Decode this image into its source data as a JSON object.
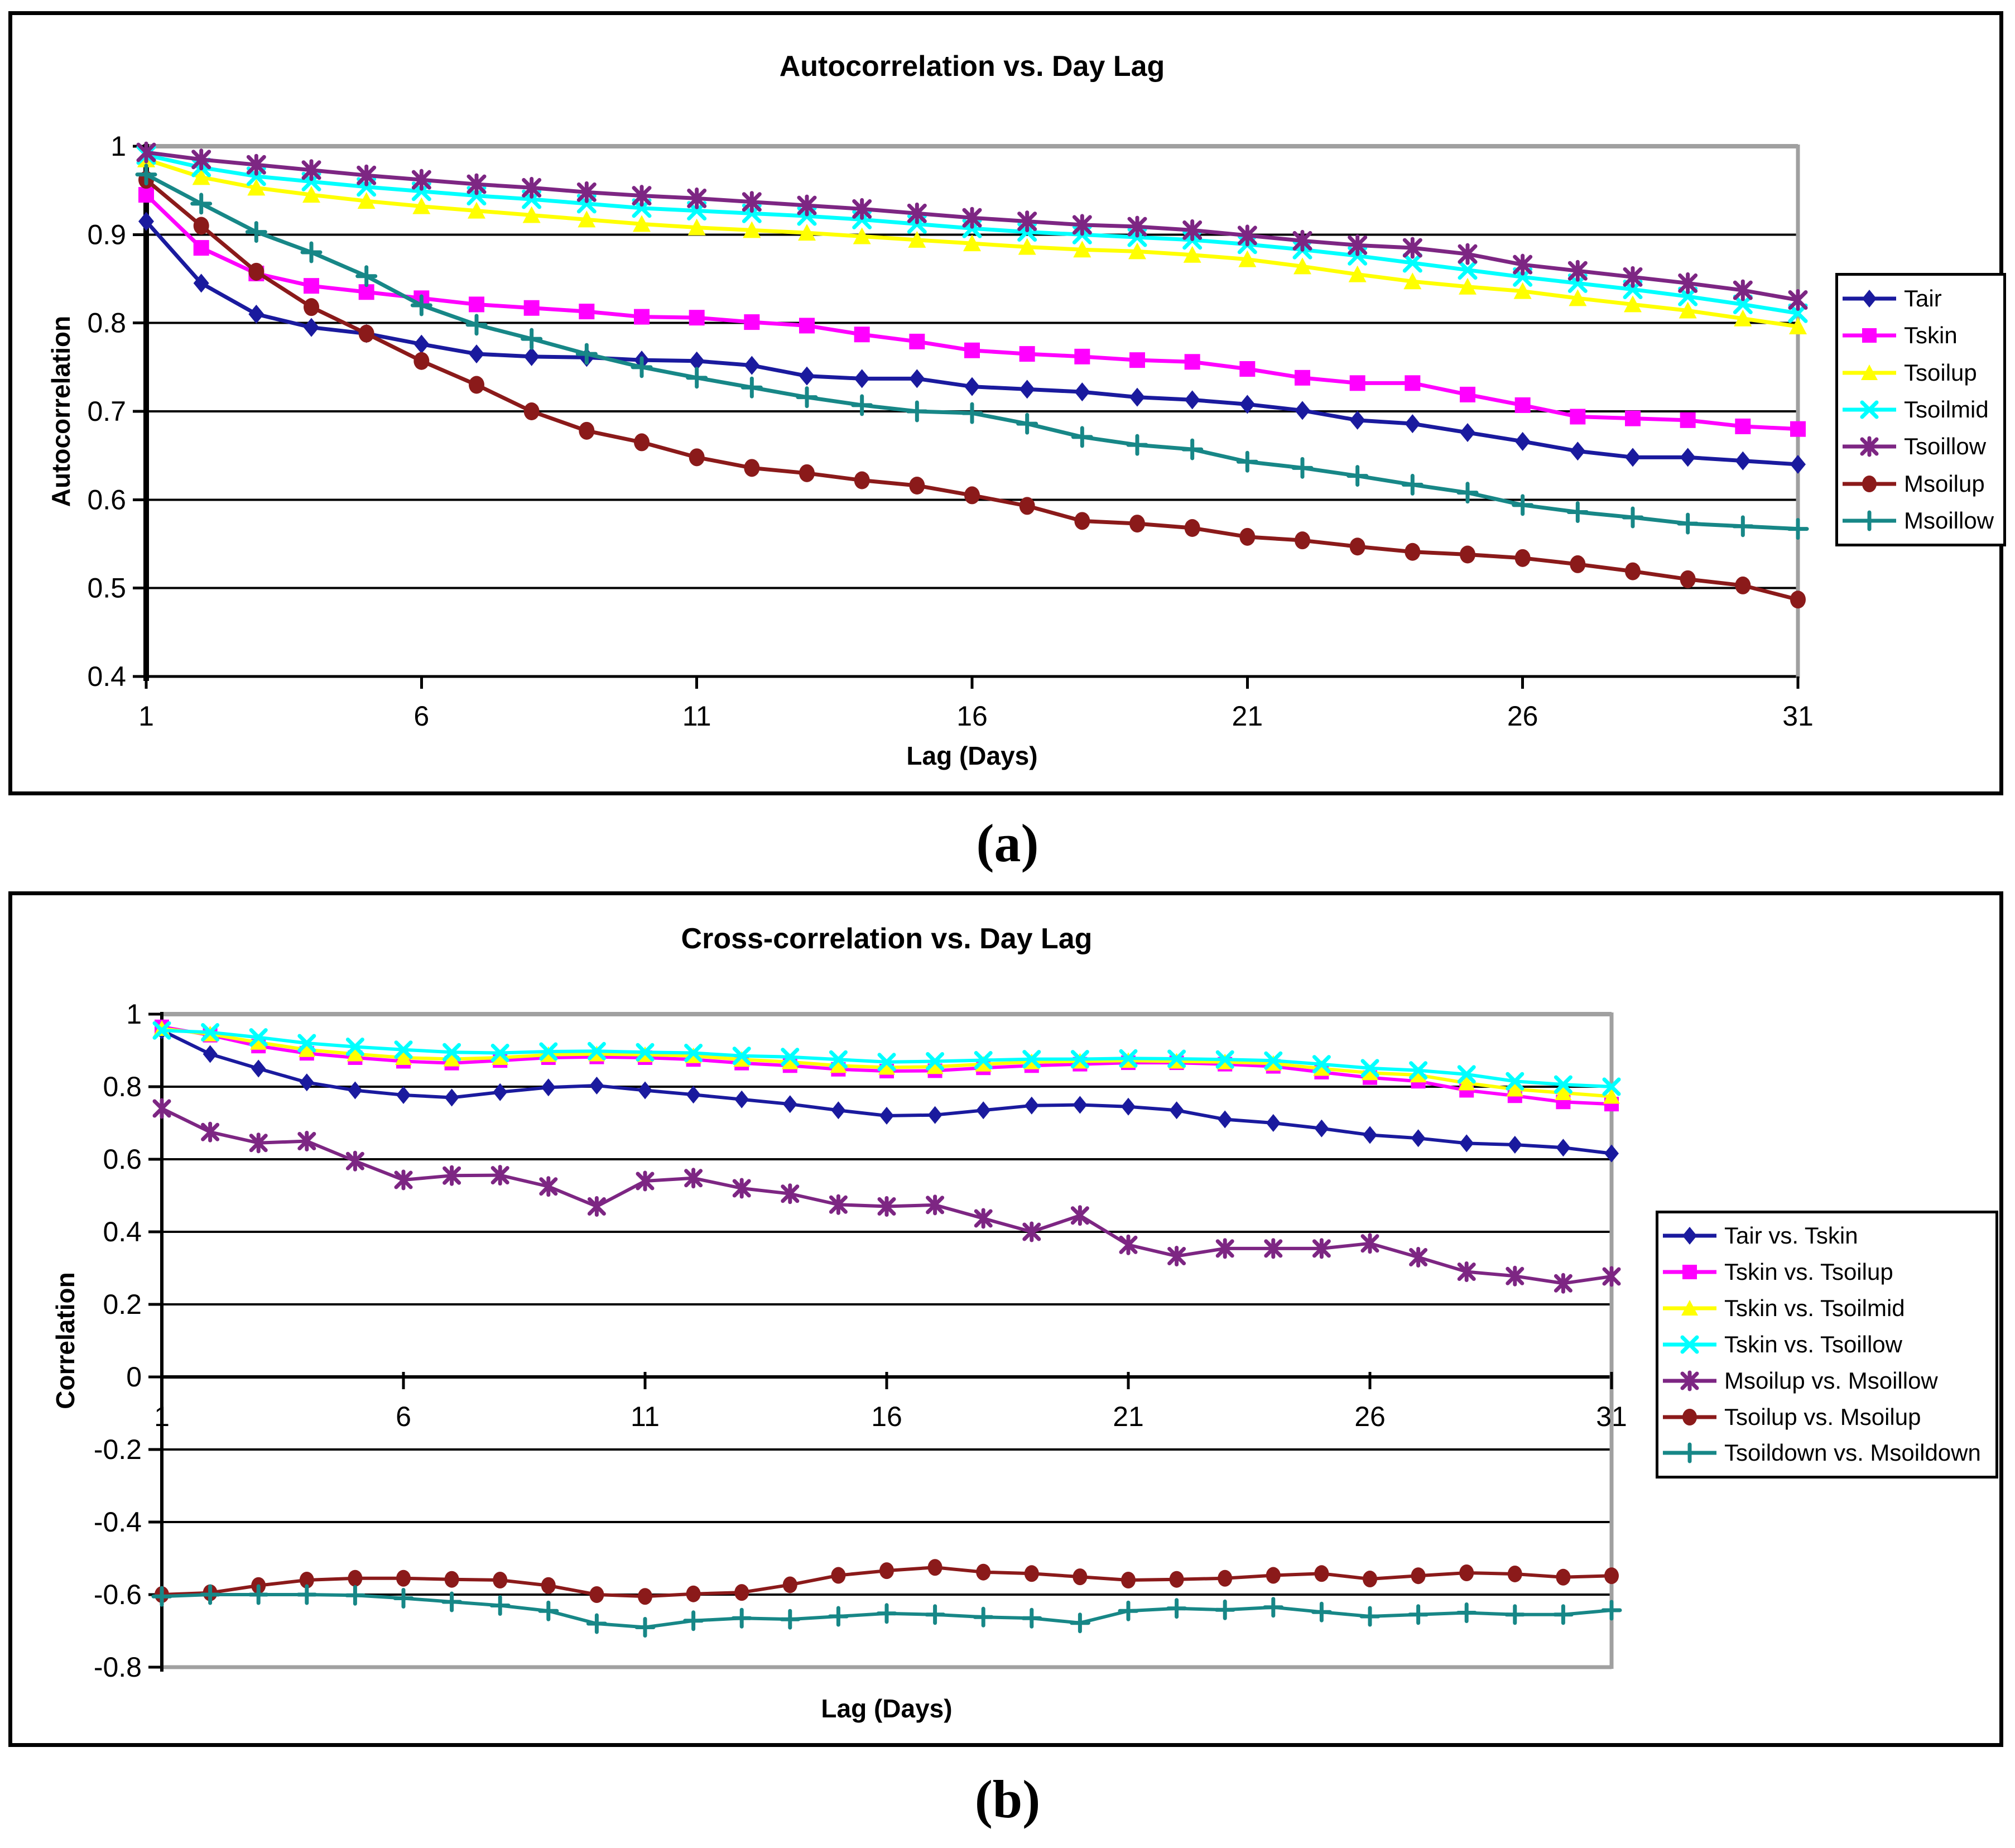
{
  "page": {
    "caption_a": "(a)",
    "caption_b": "(b)"
  },
  "chart_data": [
    {
      "type": "line",
      "title": "Autocorrelation vs. Day Lag",
      "xlabel": "Lag (Days)",
      "ylabel": "Autocorrelation",
      "xlim": [
        1,
        31
      ],
      "ylim": [
        0.4,
        1.0
      ],
      "x_ticks": [
        1,
        6,
        11,
        16,
        21,
        26,
        31
      ],
      "y_ticks": [
        1,
        0.9,
        0.8,
        0.7,
        0.6,
        0.5,
        0.4
      ],
      "grid": true,
      "legend_position": "right",
      "x": [
        1,
        2,
        3,
        4,
        5,
        6,
        7,
        8,
        9,
        10,
        11,
        12,
        13,
        14,
        15,
        16,
        17,
        18,
        19,
        20,
        21,
        22,
        23,
        24,
        25,
        26,
        27,
        28,
        29,
        30,
        31
      ],
      "series": [
        {
          "name": "Tair",
          "color": "#1a1a9e",
          "marker": "diamond",
          "values": [
            0.915,
            0.845,
            0.81,
            0.795,
            0.788,
            0.776,
            0.765,
            0.762,
            0.761,
            0.758,
            0.757,
            0.752,
            0.74,
            0.737,
            0.737,
            0.728,
            0.725,
            0.722,
            0.716,
            0.713,
            0.708,
            0.701,
            0.69,
            0.686,
            0.676,
            0.666,
            0.655,
            0.648,
            0.648,
            0.644,
            0.64
          ]
        },
        {
          "name": "Tskin",
          "color": "#ff00ff",
          "marker": "square",
          "values": [
            0.945,
            0.885,
            0.856,
            0.842,
            0.835,
            0.828,
            0.821,
            0.817,
            0.813,
            0.807,
            0.806,
            0.801,
            0.797,
            0.787,
            0.779,
            0.769,
            0.765,
            0.762,
            0.758,
            0.756,
            0.748,
            0.738,
            0.732,
            0.732,
            0.719,
            0.707,
            0.694,
            0.692,
            0.69,
            0.683,
            0.68
          ]
        },
        {
          "name": "Tsoilup",
          "color": "#ffff00",
          "marker": "triangle",
          "values": [
            0.985,
            0.965,
            0.953,
            0.945,
            0.938,
            0.932,
            0.927,
            0.922,
            0.917,
            0.912,
            0.908,
            0.905,
            0.902,
            0.898,
            0.894,
            0.89,
            0.886,
            0.883,
            0.881,
            0.877,
            0.872,
            0.864,
            0.855,
            0.847,
            0.841,
            0.836,
            0.828,
            0.821,
            0.814,
            0.805,
            0.796
          ]
        },
        {
          "name": "Tsoilmid",
          "color": "#00ffff",
          "marker": "x",
          "values": [
            0.99,
            0.976,
            0.966,
            0.96,
            0.954,
            0.949,
            0.944,
            0.94,
            0.935,
            0.93,
            0.927,
            0.924,
            0.921,
            0.917,
            0.912,
            0.907,
            0.903,
            0.9,
            0.897,
            0.894,
            0.889,
            0.883,
            0.876,
            0.868,
            0.86,
            0.852,
            0.845,
            0.838,
            0.83,
            0.821,
            0.811
          ]
        },
        {
          "name": "Tsoillow",
          "color": "#7d2683",
          "marker": "star",
          "values": [
            0.993,
            0.985,
            0.979,
            0.973,
            0.967,
            0.962,
            0.957,
            0.953,
            0.948,
            0.944,
            0.941,
            0.937,
            0.933,
            0.929,
            0.924,
            0.919,
            0.915,
            0.911,
            0.909,
            0.905,
            0.899,
            0.893,
            0.888,
            0.885,
            0.878,
            0.866,
            0.859,
            0.852,
            0.845,
            0.837,
            0.826
          ]
        },
        {
          "name": "Msoilup",
          "color": "#8b1a1a",
          "marker": "circle",
          "values": [
            0.962,
            0.91,
            0.858,
            0.818,
            0.788,
            0.757,
            0.73,
            0.7,
            0.678,
            0.665,
            0.648,
            0.636,
            0.63,
            0.622,
            0.616,
            0.605,
            0.593,
            0.576,
            0.573,
            0.568,
            0.558,
            0.554,
            0.547,
            0.541,
            0.538,
            0.534,
            0.527,
            0.519,
            0.51,
            0.503,
            0.487
          ]
        },
        {
          "name": "Msoillow",
          "color": "#178787",
          "marker": "plus",
          "values": [
            0.968,
            0.935,
            0.903,
            0.88,
            0.853,
            0.82,
            0.798,
            0.782,
            0.765,
            0.75,
            0.738,
            0.727,
            0.716,
            0.707,
            0.7,
            0.698,
            0.686,
            0.671,
            0.662,
            0.657,
            0.643,
            0.636,
            0.627,
            0.617,
            0.608,
            0.594,
            0.586,
            0.58,
            0.573,
            0.57,
            0.567
          ]
        }
      ]
    },
    {
      "type": "line",
      "title": "Cross-correlation vs. Day Lag",
      "xlabel": "Lag (Days)",
      "ylabel": "Correlation",
      "xlim": [
        1,
        31
      ],
      "ylim": [
        -0.8,
        1.0
      ],
      "x_ticks": [
        1,
        6,
        11,
        16,
        21,
        26,
        31
      ],
      "y_ticks": [
        1,
        0.8,
        0.6,
        0.4,
        0.2,
        0,
        -0.2,
        -0.4,
        -0.6,
        -0.8
      ],
      "grid": true,
      "legend_position": "right",
      "x": [
        1,
        2,
        3,
        4,
        5,
        6,
        7,
        8,
        9,
        10,
        11,
        12,
        13,
        14,
        15,
        16,
        17,
        18,
        19,
        20,
        21,
        22,
        23,
        24,
        25,
        26,
        27,
        28,
        29,
        30,
        31
      ],
      "series": [
        {
          "name": "Tair vs. Tskin",
          "color": "#1a1a9e",
          "marker": "diamond",
          "values": [
            0.955,
            0.89,
            0.85,
            0.812,
            0.79,
            0.777,
            0.77,
            0.785,
            0.798,
            0.803,
            0.79,
            0.778,
            0.765,
            0.752,
            0.735,
            0.72,
            0.722,
            0.735,
            0.748,
            0.75,
            0.745,
            0.735,
            0.71,
            0.7,
            0.685,
            0.667,
            0.658,
            0.644,
            0.64,
            0.632,
            0.616
          ]
        },
        {
          "name": "Tskin vs. Tsoilup",
          "color": "#ff00ff",
          "marker": "square",
          "values": [
            0.965,
            0.942,
            0.912,
            0.892,
            0.88,
            0.87,
            0.865,
            0.872,
            0.88,
            0.882,
            0.88,
            0.875,
            0.865,
            0.858,
            0.848,
            0.843,
            0.844,
            0.852,
            0.858,
            0.862,
            0.866,
            0.866,
            0.862,
            0.856,
            0.84,
            0.825,
            0.815,
            0.79,
            0.775,
            0.758,
            0.752
          ]
        },
        {
          "name": "Tskin vs. Tsoilmid",
          "color": "#ffff00",
          "marker": "triangle",
          "values": [
            0.96,
            0.945,
            0.922,
            0.902,
            0.89,
            0.88,
            0.876,
            0.88,
            0.888,
            0.89,
            0.888,
            0.885,
            0.875,
            0.868,
            0.858,
            0.853,
            0.855,
            0.862,
            0.868,
            0.87,
            0.872,
            0.87,
            0.868,
            0.864,
            0.85,
            0.838,
            0.832,
            0.81,
            0.793,
            0.783,
            0.773
          ]
        },
        {
          "name": "Tskin vs. Tsoillow",
          "color": "#00ffff",
          "marker": "x",
          "values": [
            0.955,
            0.95,
            0.936,
            0.92,
            0.91,
            0.902,
            0.895,
            0.893,
            0.897,
            0.898,
            0.895,
            0.893,
            0.885,
            0.882,
            0.875,
            0.868,
            0.87,
            0.873,
            0.876,
            0.876,
            0.878,
            0.877,
            0.875,
            0.872,
            0.862,
            0.851,
            0.845,
            0.834,
            0.815,
            0.806,
            0.8
          ]
        },
        {
          "name": "Msoilup vs. Msoillow",
          "color": "#7d2683",
          "marker": "star",
          "values": [
            0.74,
            0.675,
            0.645,
            0.65,
            0.595,
            0.543,
            0.555,
            0.556,
            0.525,
            0.47,
            0.54,
            0.548,
            0.52,
            0.505,
            0.475,
            0.47,
            0.474,
            0.437,
            0.4,
            0.445,
            0.364,
            0.333,
            0.354,
            0.354,
            0.354,
            0.368,
            0.33,
            0.29,
            0.278,
            0.258,
            0.277
          ]
        },
        {
          "name": "Tsoilup vs. Msoilup",
          "color": "#8b1a1a",
          "marker": "circle",
          "values": [
            -0.6,
            -0.595,
            -0.575,
            -0.56,
            -0.555,
            -0.555,
            -0.558,
            -0.56,
            -0.575,
            -0.6,
            -0.605,
            -0.598,
            -0.594,
            -0.573,
            -0.547,
            -0.534,
            -0.525,
            -0.538,
            -0.542,
            -0.551,
            -0.56,
            -0.558,
            -0.555,
            -0.547,
            -0.542,
            -0.557,
            -0.548,
            -0.54,
            -0.543,
            -0.552,
            -0.548
          ]
        },
        {
          "name": "Tsoildown vs. Msoildown",
          "color": "#178787",
          "marker": "plus",
          "values": [
            -0.605,
            -0.6,
            -0.6,
            -0.6,
            -0.602,
            -0.61,
            -0.62,
            -0.63,
            -0.645,
            -0.68,
            -0.69,
            -0.672,
            -0.665,
            -0.668,
            -0.66,
            -0.652,
            -0.655,
            -0.662,
            -0.665,
            -0.678,
            -0.645,
            -0.638,
            -0.642,
            -0.635,
            -0.648,
            -0.66,
            -0.655,
            -0.65,
            -0.655,
            -0.655,
            -0.643
          ]
        }
      ]
    }
  ]
}
